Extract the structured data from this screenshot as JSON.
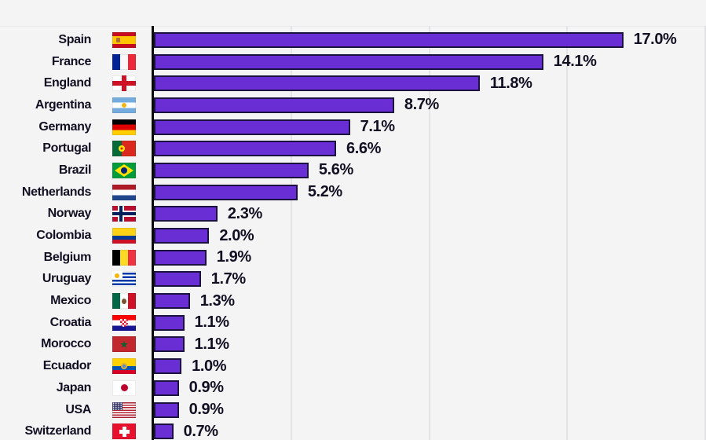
{
  "chart_data": {
    "type": "bar",
    "orientation": "horizontal",
    "unit": "%",
    "xlim": [
      0,
      20
    ],
    "gridline_step": 5,
    "grid": true,
    "legend": false,
    "rows": [
      {
        "country": "Spain",
        "flag": "spain",
        "value": 17.0,
        "label": "17.0%"
      },
      {
        "country": "France",
        "flag": "france",
        "value": 14.1,
        "label": "14.1%"
      },
      {
        "country": "England",
        "flag": "england",
        "value": 11.8,
        "label": "11.8%"
      },
      {
        "country": "Argentina",
        "flag": "argentina",
        "value": 8.7,
        "label": "8.7%"
      },
      {
        "country": "Germany",
        "flag": "germany",
        "value": 7.1,
        "label": "7.1%"
      },
      {
        "country": "Portugal",
        "flag": "portugal",
        "value": 6.6,
        "label": "6.6%"
      },
      {
        "country": "Brazil",
        "flag": "brazil",
        "value": 5.6,
        "label": "5.6%"
      },
      {
        "country": "Netherlands",
        "flag": "netherlands",
        "value": 5.2,
        "label": "5.2%"
      },
      {
        "country": "Norway",
        "flag": "norway",
        "value": 2.3,
        "label": "2.3%"
      },
      {
        "country": "Colombia",
        "flag": "colombia",
        "value": 2.0,
        "label": "2.0%"
      },
      {
        "country": "Belgium",
        "flag": "belgium",
        "value": 1.9,
        "label": "1.9%"
      },
      {
        "country": "Uruguay",
        "flag": "uruguay",
        "value": 1.7,
        "label": "1.7%"
      },
      {
        "country": "Mexico",
        "flag": "mexico",
        "value": 1.3,
        "label": "1.3%"
      },
      {
        "country": "Croatia",
        "flag": "croatia",
        "value": 1.1,
        "label": "1.1%"
      },
      {
        "country": "Morocco",
        "flag": "morocco",
        "value": 1.1,
        "label": "1.1%"
      },
      {
        "country": "Ecuador",
        "flag": "ecuador",
        "value": 1.0,
        "label": "1.0%"
      },
      {
        "country": "Japan",
        "flag": "japan",
        "value": 0.9,
        "label": "0.9%"
      },
      {
        "country": "USA",
        "flag": "usa",
        "value": 0.9,
        "label": "0.9%"
      },
      {
        "country": "Switzerland",
        "flag": "switzerland",
        "value": 0.7,
        "label": "0.7%"
      }
    ],
    "colors": {
      "bar": "#6a2fd4",
      "bar_border": "#1c1240",
      "axis": "#0a0a0a",
      "background": "#f5f4f5",
      "gridline": "#e4e3e6",
      "text": "#130f22"
    }
  }
}
